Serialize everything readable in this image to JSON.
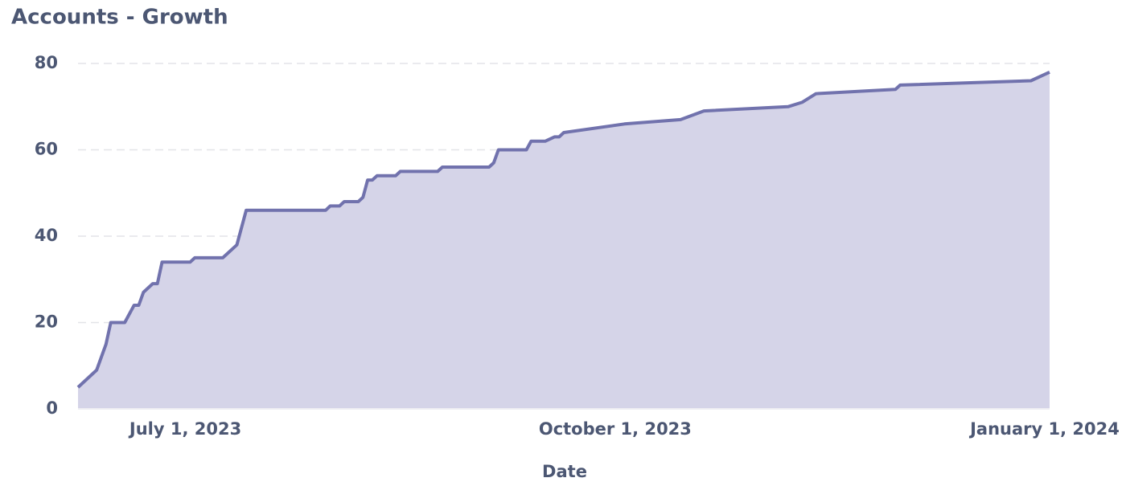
{
  "chart_data": {
    "type": "area",
    "title": "Accounts - Growth",
    "x_label": "Date",
    "color": "#7172ad",
    "fill": "#d5d4e8",
    "grid": true,
    "x": [
      "2023-06-08",
      "2023-06-12",
      "2023-06-14",
      "2023-06-15",
      "2023-06-18",
      "2023-06-20",
      "2023-06-21",
      "2023-06-22",
      "2023-06-24",
      "2023-06-25",
      "2023-06-26",
      "2023-07-02",
      "2023-07-03",
      "2023-07-09",
      "2023-07-12",
      "2023-07-14",
      "2023-07-31",
      "2023-08-01",
      "2023-08-03",
      "2023-08-04",
      "2023-08-07",
      "2023-08-08",
      "2023-08-09",
      "2023-08-10",
      "2023-08-11",
      "2023-08-15",
      "2023-08-16",
      "2023-08-24",
      "2023-08-25",
      "2023-09-04",
      "2023-09-05",
      "2023-09-06",
      "2023-09-12",
      "2023-09-13",
      "2023-09-16",
      "2023-09-18",
      "2023-09-19",
      "2023-09-20",
      "2023-10-03",
      "2023-10-15",
      "2023-10-20",
      "2023-11-07",
      "2023-11-10",
      "2023-11-13",
      "2023-11-30",
      "2023-12-01",
      "2023-12-29",
      "2024-01-02"
    ],
    "values": [
      5,
      9,
      15,
      20,
      20,
      24,
      24,
      27,
      29,
      29,
      34,
      34,
      35,
      35,
      38,
      46,
      46,
      47,
      47,
      48,
      48,
      49,
      53,
      53,
      54,
      54,
      55,
      55,
      56,
      56,
      57,
      60,
      60,
      62,
      62,
      63,
      63,
      64,
      66,
      67,
      69,
      70,
      71,
      73,
      74,
      75,
      76,
      78
    ],
    "xlim": [
      "2023-06-08",
      "2024-01-02"
    ],
    "xticks": [
      {
        "value": "2023-07-01",
        "label": "July 1, 2023"
      },
      {
        "value": "2023-10-01",
        "label": "October 1, 2023"
      },
      {
        "value": "2024-01-01",
        "label": "January 1, 2024"
      }
    ],
    "ylim": [
      0,
      80
    ],
    "yticks": [
      0,
      20,
      40,
      60,
      80
    ]
  }
}
